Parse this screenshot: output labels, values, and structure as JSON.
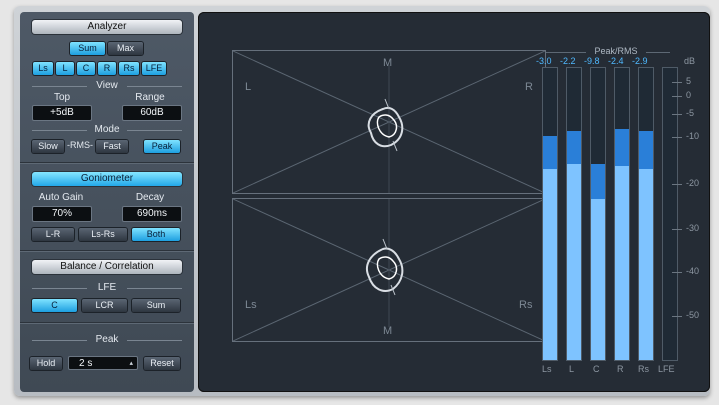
{
  "analyzer": {
    "title": "Analyzer",
    "sum_label": "Sum",
    "max_label": "Max",
    "channels": [
      "Ls",
      "L",
      "C",
      "R",
      "Rs",
      "LFE"
    ]
  },
  "view": {
    "title": "View",
    "top_label": "Top",
    "top_value": "+5dB",
    "range_label": "Range",
    "range_value": "60dB"
  },
  "mode": {
    "title": "Mode",
    "slow_label": "Slow",
    "rms_label": "-RMS-",
    "fast_label": "Fast",
    "peak_label": "Peak"
  },
  "goniometer": {
    "title": "Goniometer",
    "auto_gain_label": "Auto Gain",
    "auto_gain_value": "70%",
    "decay_label": "Decay",
    "decay_value": "690ms",
    "lr_label": "L-R",
    "lsrs_label": "Ls-Rs",
    "both_label": "Both"
  },
  "balance": {
    "title": "Balance / Correlation"
  },
  "lfe": {
    "title": "LFE",
    "c_label": "C",
    "lcr_label": "LCR",
    "sum_label": "Sum"
  },
  "peak": {
    "title": "Peak",
    "hold_label": "Hold",
    "hold_value": "2 s",
    "reset_label": "Reset"
  },
  "scopes": {
    "top": {
      "l": "L",
      "m": "M",
      "r": "R"
    },
    "bottom": {
      "ls": "Ls",
      "m": "M",
      "rs": "Rs"
    }
  },
  "meters": {
    "title": "Peak/RMS",
    "db_label": "dB",
    "scale": [
      "5",
      "0",
      "-5",
      "-10",
      "-20",
      "-30",
      "-40",
      "-50"
    ],
    "channels": [
      "Ls",
      "L",
      "C",
      "R",
      "Rs",
      "LFE"
    ],
    "peak_values": [
      "-3.0",
      "-2.2",
      "-9.8",
      "-2.4",
      "-2.9",
      ""
    ],
    "peak_db": [
      -9.5,
      -8.5,
      -15.5,
      -8.0,
      -8.5,
      null
    ],
    "rms_db": [
      -16.5,
      -15.5,
      -23.0,
      -16.0,
      -16.5,
      null
    ],
    "peak_color": "#2a7fd8",
    "rms_color": "#7ec3ff",
    "accent": "#22a8e9"
  }
}
